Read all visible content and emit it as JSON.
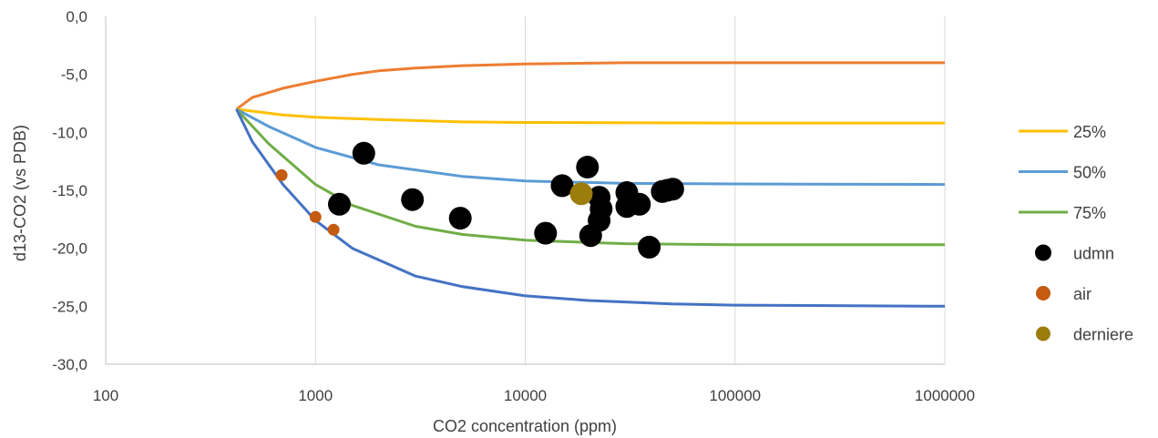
{
  "chart_data": {
    "type": "scatter",
    "xlabel": "CO2 concentration (ppm)",
    "ylabel": "d13-CO2 (vs PDB)",
    "x_scale": "log",
    "xlim": [
      100,
      1000000
    ],
    "ylim": [
      -30,
      0
    ],
    "x_ticks": [
      "100",
      "1000",
      "10000",
      "100000",
      "1000000"
    ],
    "y_ticks": [
      "0,0",
      "-5,0",
      "-10,0",
      "-15,0",
      "-20,0",
      "-25,0",
      "-30,0"
    ],
    "grid": "vertical",
    "legend_position": "right",
    "series": [
      {
        "name": "",
        "kind": "line",
        "color": "#ed7d31",
        "points": [
          [
            420,
            -8.0
          ],
          [
            500,
            -7.0
          ],
          [
            700,
            -6.2
          ],
          [
            1000,
            -5.6
          ],
          [
            1500,
            -5.0
          ],
          [
            2000,
            -4.7
          ],
          [
            3000,
            -4.45
          ],
          [
            5000,
            -4.25
          ],
          [
            10000,
            -4.1
          ],
          [
            30000,
            -4.0
          ],
          [
            100000,
            -4.0
          ],
          [
            1000000,
            -4.0
          ]
        ]
      },
      {
        "name": "25%",
        "kind": "line",
        "color": "#ffc000",
        "points": [
          [
            420,
            -8.0
          ],
          [
            700,
            -8.5
          ],
          [
            1000,
            -8.7
          ],
          [
            2000,
            -8.9
          ],
          [
            5000,
            -9.1
          ],
          [
            10000,
            -9.15
          ],
          [
            100000,
            -9.2
          ],
          [
            1000000,
            -9.2
          ]
        ]
      },
      {
        "name": "50%",
        "kind": "line",
        "color": "#5b9bd5",
        "points": [
          [
            420,
            -8.0
          ],
          [
            600,
            -9.5
          ],
          [
            1000,
            -11.3
          ],
          [
            2000,
            -12.8
          ],
          [
            5000,
            -13.8
          ],
          [
            10000,
            -14.2
          ],
          [
            30000,
            -14.4
          ],
          [
            100000,
            -14.45
          ],
          [
            1000000,
            -14.5
          ]
        ]
      },
      {
        "name": "75%",
        "kind": "line",
        "color": "#70ad47",
        "points": [
          [
            420,
            -8.0
          ],
          [
            600,
            -11.0
          ],
          [
            1000,
            -14.5
          ],
          [
            1500,
            -16.3
          ],
          [
            3000,
            -18.1
          ],
          [
            5000,
            -18.8
          ],
          [
            10000,
            -19.3
          ],
          [
            30000,
            -19.6
          ],
          [
            100000,
            -19.7
          ],
          [
            1000000,
            -19.7
          ]
        ]
      },
      {
        "name": "",
        "kind": "line",
        "color": "#4472c4",
        "points": [
          [
            420,
            -8.0
          ],
          [
            500,
            -10.8
          ],
          [
            700,
            -14.5
          ],
          [
            1000,
            -17.6
          ],
          [
            1500,
            -20.0
          ],
          [
            2000,
            -21.0
          ],
          [
            3000,
            -22.4
          ],
          [
            5000,
            -23.3
          ],
          [
            10000,
            -24.1
          ],
          [
            20000,
            -24.5
          ],
          [
            50000,
            -24.8
          ],
          [
            100000,
            -24.9
          ],
          [
            1000000,
            -25.0
          ]
        ]
      },
      {
        "name": "udmn",
        "kind": "scatter",
        "color": "#000000",
        "points": [
          [
            1700,
            -11.8
          ],
          [
            1300,
            -16.2
          ],
          [
            2900,
            -15.8
          ],
          [
            4900,
            -17.4
          ],
          [
            12500,
            -18.7
          ],
          [
            15000,
            -14.6
          ],
          [
            19800,
            -13.0
          ],
          [
            20500,
            -18.9
          ],
          [
            22500,
            -15.6
          ],
          [
            22500,
            -17.6
          ],
          [
            23000,
            -16.6
          ],
          [
            30500,
            -15.2
          ],
          [
            30500,
            -16.4
          ],
          [
            35000,
            -16.2
          ],
          [
            39000,
            -19.9
          ],
          [
            45000,
            -15.1
          ],
          [
            47500,
            -15.0
          ],
          [
            50500,
            -14.9
          ]
        ]
      },
      {
        "name": "air",
        "kind": "scatter",
        "color": "#c55a11",
        "points": [
          [
            690,
            -13.7
          ],
          [
            1000,
            -17.3
          ],
          [
            1220,
            -18.4
          ]
        ]
      },
      {
        "name": "derniere",
        "kind": "scatter",
        "color": "#9c7c0a",
        "points": [
          [
            18500,
            -15.3
          ]
        ]
      }
    ]
  }
}
